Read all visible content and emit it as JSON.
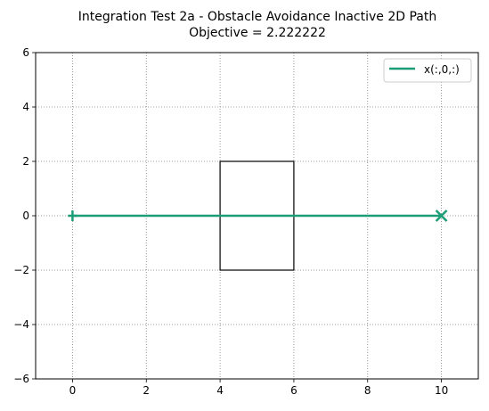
{
  "chart_data": {
    "type": "line",
    "title_line1": "Integration Test 2a - Obstacle Avoidance Inactive 2D Path",
    "title_line2": "Objective = 2.222222",
    "xlabel": "",
    "ylabel": "",
    "xlim": [
      -1,
      11
    ],
    "ylim": [
      -6,
      6
    ],
    "xticks": [
      0,
      2,
      4,
      6,
      8,
      10
    ],
    "yticks": [
      -6,
      -4,
      -2,
      0,
      2,
      4,
      6
    ],
    "grid": true,
    "legend_position": "top-right",
    "series": [
      {
        "name": "x(:,0,:)",
        "color": "#1b9e77",
        "x": [
          0,
          10
        ],
        "y": [
          0,
          0
        ],
        "start_marker": "plus",
        "end_marker": "x"
      }
    ],
    "obstacle": {
      "x": [
        4,
        6
      ],
      "y": [
        -2,
        2
      ],
      "color": "#000000"
    }
  }
}
